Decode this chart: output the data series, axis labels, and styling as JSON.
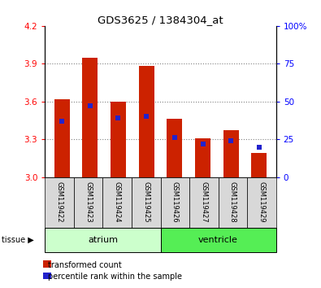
{
  "title": "GDS3625 / 1384304_at",
  "samples": [
    "GSM119422",
    "GSM119423",
    "GSM119424",
    "GSM119425",
    "GSM119426",
    "GSM119427",
    "GSM119428",
    "GSM119429"
  ],
  "red_values": [
    3.62,
    3.95,
    3.6,
    3.88,
    3.46,
    3.31,
    3.37,
    3.19
  ],
  "blue_values_pct": [
    37,
    47,
    39,
    40,
    26,
    22,
    24,
    20
  ],
  "ylim_left": [
    3.0,
    4.2
  ],
  "ylim_right": [
    0,
    100
  ],
  "yticks_left": [
    3.0,
    3.3,
    3.6,
    3.9,
    4.2
  ],
  "yticks_right": [
    0,
    25,
    50,
    75,
    100
  ],
  "bar_color": "#cc2200",
  "dot_color": "#2222cc",
  "atrium_label": "atrium",
  "ventricle_label": "ventricle",
  "tissue_label": "tissue",
  "legend_red": "transformed count",
  "legend_blue": "percentile rank within the sample",
  "atrium_color": "#ccffcc",
  "ventricle_color": "#55ee55",
  "xticklabel_bg": "#d8d8d8",
  "base_value": 3.0,
  "bar_width": 0.55
}
